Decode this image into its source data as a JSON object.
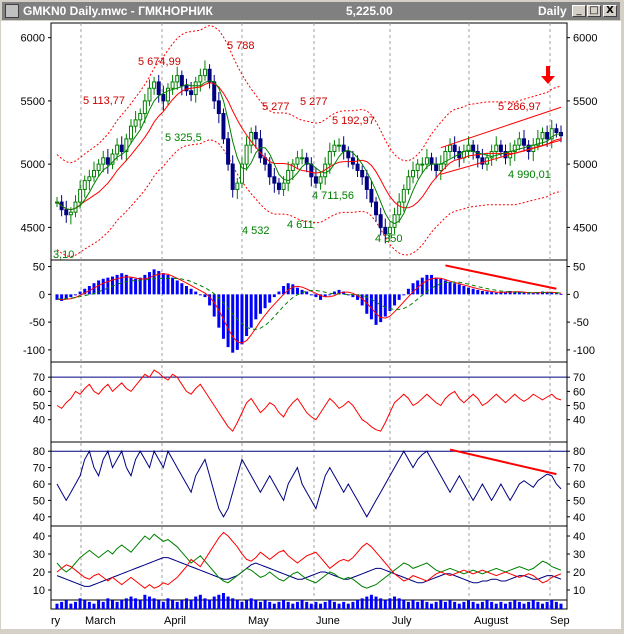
{
  "window": {
    "title": "GMKN0 Daily.mwc - ГМКНОРНИК",
    "price": "5,225.00",
    "period": "Daily",
    "buttons": {
      "minimize": "_",
      "maximize": "□",
      "close": "X"
    }
  },
  "colors": {
    "price_axis": "#000000",
    "candle_up": "#008000",
    "candle_down": "#000080",
    "ma_fast": "#008000",
    "ma_slow": "#ff0000",
    "envelope": "#ff0000",
    "annotation_red": "#cc0000",
    "annotation_green": "#008000",
    "trend_line": "#ff0000",
    "histogram": "#0000ff",
    "adx": "#000080",
    "di_plus": "#008000",
    "di_minus": "#ff0000"
  },
  "chart_data": [
    {
      "type": "candlestick",
      "panel": "price",
      "y_ticks": [
        "6000",
        "5500",
        "5000",
        "4500"
      ],
      "ylim": [
        4250,
        6100
      ],
      "x_tick_labels": [
        "ry",
        "March",
        "April",
        "May",
        "June",
        "July",
        "August",
        "Sep"
      ],
      "close": [
        4700,
        4640,
        4600,
        4620,
        4700,
        4800,
        4870,
        4900,
        4950,
        5000,
        5050,
        5000,
        5080,
        5150,
        5100,
        5200,
        5300,
        5350,
        5400,
        5500,
        5600,
        5650,
        5550,
        5500,
        5600,
        5650,
        5700,
        5620,
        5580,
        5550,
        5650,
        5700,
        5750,
        5650,
        5500,
        5400,
        5200,
        5000,
        4800,
        4850,
        5000,
        5150,
        5250,
        5200,
        5050,
        5000,
        4900,
        4850,
        4800,
        4850,
        4950,
        5000,
        5050,
        5050,
        5000,
        4900,
        4850,
        4900,
        5000,
        5100,
        5150,
        5150,
        5100,
        5050,
        5000,
        4950,
        4900,
        4800,
        4700,
        4600,
        4500,
        4450,
        4500,
        4600,
        4700,
        4800,
        4900,
        4950,
        5000,
        5000,
        5050,
        5000,
        4950,
        5000,
        5100,
        5150,
        5100,
        5050,
        5100,
        5150,
        5100,
        5050,
        5000,
        5050,
        5100,
        5150,
        5100,
        5050,
        5100,
        5150,
        5200,
        5150,
        5100,
        5150,
        5200,
        5250,
        5200,
        5280,
        5250,
        5225
      ],
      "annotations": [
        {
          "text": "5 674,99",
          "kind": "high"
        },
        {
          "text": "5 788",
          "kind": "high"
        },
        {
          "text": "5 113,77",
          "kind": "high"
        },
        {
          "text": "5 277",
          "kind": "high"
        },
        {
          "text": "5 277",
          "kind": "high"
        },
        {
          "text": "5 192,97",
          "kind": "high"
        },
        {
          "text": "5 286,97",
          "kind": "high"
        },
        {
          "text": "5 325,5",
          "kind": "low"
        },
        {
          "text": "4 711,56",
          "kind": "low"
        },
        {
          "text": "4 532",
          "kind": "low"
        },
        {
          "text": "4 611",
          "kind": "low"
        },
        {
          "text": "4 350",
          "kind": "low"
        },
        {
          "text": "4 990,01",
          "kind": "low"
        },
        {
          "text": "3,10",
          "kind": "low"
        }
      ]
    },
    {
      "type": "bar",
      "panel": "macd",
      "y_ticks": [
        "50",
        "0",
        "-50",
        "-100"
      ],
      "ylim": [
        -120,
        60
      ],
      "histogram": [
        -10,
        -12,
        -8,
        -5,
        0,
        5,
        10,
        15,
        20,
        25,
        28,
        30,
        32,
        35,
        38,
        35,
        30,
        28,
        30,
        35,
        40,
        45,
        42,
        38,
        35,
        30,
        25,
        20,
        15,
        10,
        5,
        0,
        -5,
        -20,
        -40,
        -60,
        -80,
        -95,
        -105,
        -100,
        -90,
        -75,
        -60,
        -45,
        -35,
        -25,
        -15,
        -5,
        5,
        15,
        20,
        18,
        12,
        8,
        5,
        0,
        -5,
        -10,
        -5,
        0,
        5,
        8,
        5,
        0,
        -5,
        -10,
        -20,
        -35,
        -45,
        -55,
        -50,
        -40,
        -30,
        -20,
        -10,
        0,
        10,
        20,
        25,
        30,
        35,
        35,
        30,
        28,
        25,
        22,
        20,
        18,
        15,
        12,
        10,
        8,
        6,
        5,
        4,
        3,
        4,
        5,
        6,
        5,
        4,
        3,
        2,
        3,
        4,
        5,
        4,
        3,
        2,
        1
      ]
    },
    {
      "type": "line",
      "panel": "oscillator",
      "y_ticks": [
        "70",
        "60",
        "50",
        "40"
      ],
      "ylim": [
        25,
        80
      ],
      "reference_line": 70,
      "values": [
        50,
        48,
        52,
        55,
        60,
        58,
        62,
        65,
        60,
        58,
        62,
        65,
        60,
        63,
        66,
        62,
        60,
        64,
        68,
        72,
        70,
        75,
        73,
        70,
        68,
        72,
        70,
        65,
        60,
        58,
        62,
        65,
        60,
        55,
        50,
        45,
        40,
        35,
        32,
        38,
        45,
        52,
        55,
        50,
        45,
        48,
        52,
        50,
        45,
        42,
        48,
        52,
        55,
        50,
        45,
        42,
        40,
        45,
        50,
        55,
        52,
        48,
        50,
        53,
        50,
        45,
        40,
        38,
        35,
        33,
        32,
        38,
        45,
        52,
        55,
        58,
        55,
        50,
        52,
        55,
        58,
        55,
        52,
        50,
        55,
        58,
        60,
        55,
        52,
        55,
        58,
        55,
        50,
        52,
        55,
        58,
        55,
        52,
        55,
        58,
        55,
        53,
        55,
        58,
        56,
        54,
        56,
        58,
        55,
        54
      ]
    },
    {
      "type": "line",
      "panel": "stochastic",
      "y_ticks": [
        "80",
        "70",
        "60",
        "50",
        "40"
      ],
      "ylim": [
        35,
        85
      ],
      "reference_line": 80,
      "values": [
        60,
        55,
        50,
        55,
        60,
        65,
        75,
        80,
        70,
        65,
        75,
        80,
        70,
        75,
        80,
        70,
        65,
        75,
        80,
        75,
        70,
        80,
        75,
        70,
        80,
        75,
        70,
        65,
        60,
        55,
        65,
        70,
        75,
        65,
        55,
        45,
        40,
        45,
        55,
        65,
        75,
        70,
        65,
        60,
        55,
        60,
        65,
        60,
        55,
        50,
        60,
        65,
        70,
        60,
        55,
        50,
        45,
        55,
        65,
        70,
        65,
        60,
        55,
        60,
        55,
        50,
        45,
        40,
        45,
        50,
        55,
        60,
        65,
        70,
        75,
        80,
        75,
        70,
        75,
        78,
        80,
        75,
        70,
        65,
        60,
        55,
        60,
        65,
        60,
        55,
        50,
        55,
        60,
        55,
        50,
        55,
        60,
        55,
        50,
        55,
        60,
        62,
        60,
        58,
        62,
        64,
        66,
        65,
        60,
        57
      ]
    },
    {
      "type": "line",
      "panel": "dmi",
      "y_ticks": [
        "40",
        "30",
        "20",
        "10"
      ],
      "ylim": [
        5,
        45
      ],
      "series": [
        {
          "values": [
            18,
            17,
            16,
            15,
            14,
            13,
            12,
            12,
            13,
            14,
            15,
            16,
            17,
            18,
            19,
            20,
            21,
            22,
            23,
            24,
            25,
            26,
            27,
            28,
            28,
            27,
            26,
            25,
            24,
            23,
            22,
            21,
            20,
            19,
            18,
            17,
            16,
            16,
            17,
            18,
            20,
            22,
            24,
            25,
            24,
            23,
            22,
            21,
            20,
            19,
            18,
            17,
            16,
            16,
            17,
            18,
            19,
            20,
            20,
            19,
            18,
            17,
            16,
            16,
            17,
            18,
            19,
            20,
            21,
            22,
            22,
            21,
            20,
            19,
            18,
            17,
            16,
            15,
            14,
            14,
            15,
            16,
            17,
            18,
            19,
            19,
            18,
            17,
            16,
            15,
            14,
            14,
            15,
            15,
            16,
            16,
            15,
            15,
            16,
            17,
            18,
            18,
            17,
            16,
            16,
            17,
            18,
            18,
            17,
            16
          ]
        },
        {
          "values": [
            25,
            22,
            20,
            22,
            25,
            28,
            30,
            32,
            30,
            28,
            30,
            32,
            30,
            33,
            35,
            33,
            31,
            34,
            37,
            40,
            38,
            41,
            39,
            37,
            38,
            36,
            34,
            31,
            28,
            25,
            27,
            29,
            26,
            23,
            20,
            17,
            15,
            14,
            16,
            18,
            20,
            22,
            21,
            19,
            17,
            18,
            20,
            18,
            16,
            15,
            17,
            19,
            20,
            18,
            16,
            15,
            14,
            16,
            18,
            20,
            19,
            17,
            16,
            17,
            16,
            14,
            12,
            11,
            12,
            13,
            15,
            17,
            19,
            21,
            23,
            25,
            24,
            22,
            23,
            24,
            25,
            23,
            21,
            20,
            21,
            22,
            21,
            20,
            19,
            20,
            21,
            20,
            19,
            20,
            21,
            22,
            21,
            20,
            21,
            22,
            23,
            22,
            21,
            22,
            24,
            26,
            25,
            23,
            22,
            21
          ]
        },
        {
          "values": [
            20,
            22,
            24,
            23,
            21,
            19,
            17,
            16,
            18,
            19,
            17,
            15,
            17,
            15,
            13,
            15,
            17,
            15,
            13,
            11,
            13,
            11,
            12,
            14,
            13,
            15,
            17,
            20,
            23,
            27,
            25,
            23,
            27,
            31,
            35,
            39,
            42,
            40,
            37,
            34,
            30,
            27,
            26,
            28,
            31,
            29,
            27,
            29,
            31,
            32,
            29,
            27,
            25,
            27,
            29,
            30,
            31,
            28,
            25,
            22,
            24,
            26,
            27,
            26,
            28,
            31,
            34,
            36,
            34,
            31,
            28,
            25,
            22,
            19,
            17,
            15,
            16,
            18,
            17,
            16,
            15,
            17,
            19,
            20,
            19,
            18,
            19,
            20,
            21,
            20,
            19,
            20,
            21,
            20,
            19,
            18,
            19,
            20,
            19,
            18,
            17,
            18,
            19,
            18,
            16,
            14,
            15,
            17,
            18,
            19
          ]
        }
      ]
    },
    {
      "type": "bar",
      "panel": "volume",
      "values": [
        3,
        4,
        5,
        3,
        4,
        6,
        5,
        4,
        3,
        5,
        4,
        6,
        5,
        4,
        5,
        6,
        7,
        6,
        5,
        8,
        7,
        6,
        5,
        4,
        6,
        5,
        4,
        5,
        6,
        5,
        7,
        8,
        6,
        5,
        7,
        8,
        9,
        7,
        6,
        5,
        4,
        5,
        6,
        5,
        4,
        5,
        4,
        3,
        4,
        5,
        4,
        3,
        4,
        5,
        4,
        3,
        4,
        3,
        4,
        5,
        4,
        3,
        4,
        3,
        4,
        5,
        6,
        7,
        8,
        7,
        6,
        5,
        6,
        7,
        6,
        5,
        4,
        5,
        4,
        5,
        4,
        3,
        4,
        5,
        4,
        5,
        4,
        3,
        4,
        5,
        4,
        3,
        4,
        5,
        4,
        3,
        4,
        3,
        4,
        5,
        4,
        3,
        4,
        5,
        4,
        3,
        4,
        5,
        4,
        3
      ]
    }
  ]
}
